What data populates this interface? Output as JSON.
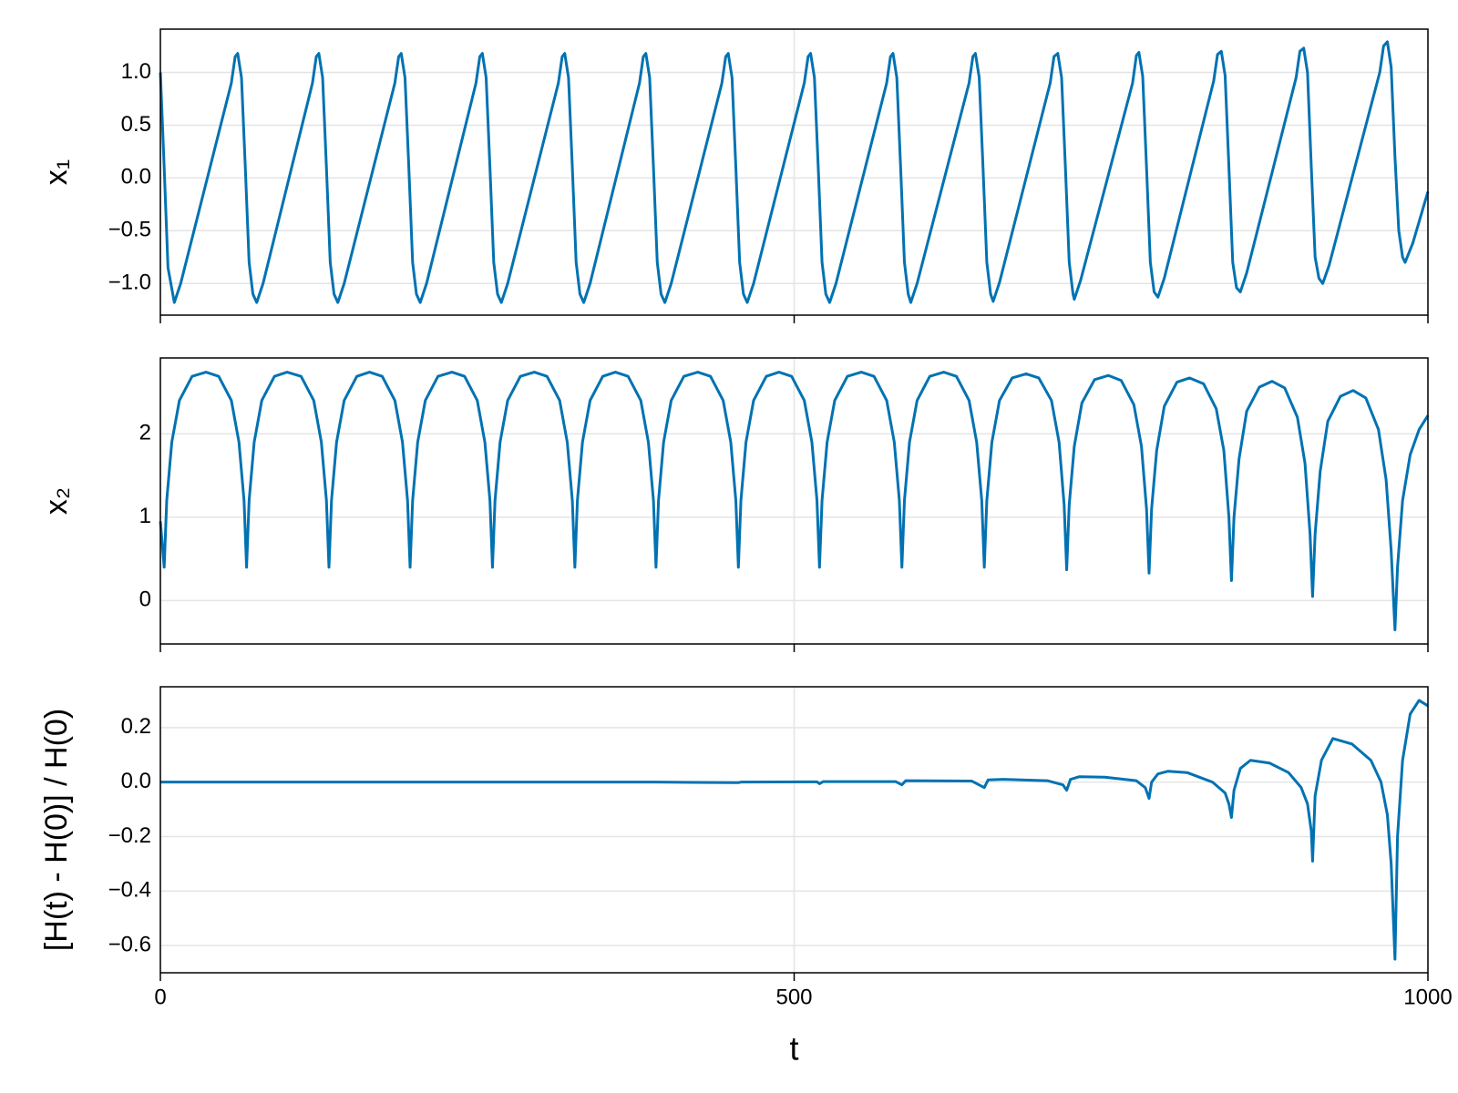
{
  "chart_data": [
    {
      "type": "line",
      "ylabel": "x₁",
      "color": "#0072b2",
      "grid": true,
      "x_tick_labels": false,
      "xlim": [
        0,
        1000
      ],
      "xticks": [
        0,
        500,
        1000
      ],
      "ylim": [
        -1.3,
        1.41
      ],
      "yticks": [
        {
          "value": -1,
          "label": "−1.0"
        },
        {
          "value": -0.5,
          "label": "−0.5"
        },
        {
          "value": 0,
          "label": "0.0"
        },
        0.5,
        {
          "value": 1,
          "label": "1.0"
        }
      ],
      "x": [
        0,
        3,
        6,
        11,
        16,
        56,
        59,
        61,
        64,
        67,
        70,
        73,
        76,
        81,
        120,
        123,
        125,
        128,
        131,
        134,
        137,
        140,
        145,
        185,
        188,
        190,
        193,
        196,
        199,
        202,
        205,
        210,
        249,
        252,
        254,
        257,
        260,
        263,
        266,
        269,
        274,
        314,
        317,
        319,
        322,
        325,
        328,
        331,
        334,
        339,
        378,
        381,
        383,
        386,
        389,
        392,
        395,
        398,
        403,
        443,
        446,
        448,
        451,
        454,
        457,
        460,
        463,
        468,
        508,
        511,
        513,
        516,
        519,
        522,
        525,
        528,
        533,
        573,
        576,
        578,
        581,
        584,
        587,
        590,
        592,
        597,
        638,
        641,
        643,
        646,
        649,
        652,
        655,
        657,
        662,
        702,
        705,
        708,
        711,
        714,
        717,
        720,
        721,
        726,
        767,
        770,
        772,
        775,
        778,
        781,
        784,
        787,
        792,
        831,
        834,
        837,
        840,
        843,
        846,
        849,
        852,
        857,
        896,
        899,
        902,
        905,
        908,
        911,
        914,
        917,
        922,
        962,
        965,
        968,
        971,
        974,
        977,
        980,
        982,
        988,
        1000
      ],
      "values": [
        1.0,
        0.1,
        -0.85,
        -1.18,
        -1.0,
        0.9,
        1.15,
        1.18,
        0.95,
        0.1,
        -0.8,
        -1.1,
        -1.18,
        -1.0,
        0.9,
        1.15,
        1.18,
        0.95,
        0.1,
        -0.8,
        -1.1,
        -1.18,
        -1.0,
        0.9,
        1.15,
        1.18,
        0.95,
        0.1,
        -0.8,
        -1.1,
        -1.18,
        -1.0,
        0.9,
        1.15,
        1.18,
        0.95,
        0.1,
        -0.8,
        -1.1,
        -1.18,
        -1.0,
        0.9,
        1.15,
        1.18,
        0.95,
        0.1,
        -0.8,
        -1.1,
        -1.18,
        -1.0,
        0.9,
        1.15,
        1.18,
        0.95,
        0.1,
        -0.8,
        -1.1,
        -1.18,
        -1.0,
        0.9,
        1.15,
        1.18,
        0.95,
        0.1,
        -0.8,
        -1.1,
        -1.18,
        -1.0,
        0.9,
        1.15,
        1.18,
        0.95,
        0.1,
        -0.8,
        -1.1,
        -1.18,
        -1.0,
        0.9,
        1.15,
        1.18,
        0.95,
        0.1,
        -0.8,
        -1.1,
        -1.18,
        -1.0,
        0.9,
        1.15,
        1.18,
        0.95,
        0.1,
        -0.8,
        -1.1,
        -1.17,
        -0.99,
        0.9,
        1.15,
        1.18,
        0.95,
        0.1,
        -0.8,
        -1.1,
        -1.15,
        -0.97,
        0.9,
        1.16,
        1.19,
        0.96,
        0.1,
        -0.8,
        -1.08,
        -1.13,
        -0.95,
        0.92,
        1.17,
        1.2,
        0.97,
        0.1,
        -0.8,
        -1.04,
        -1.08,
        -0.9,
        0.95,
        1.2,
        1.23,
        1.0,
        0.1,
        -0.75,
        -0.95,
        -1.0,
        -0.83,
        1.0,
        1.25,
        1.29,
        1.05,
        0.2,
        -0.5,
        -0.75,
        -0.8,
        -0.62,
        -0.13
      ]
    },
    {
      "type": "line",
      "ylabel": "x₂",
      "color": "#0072b2",
      "grid": true,
      "x_tick_labels": false,
      "xlim": [
        0,
        1000
      ],
      "xticks": [
        0,
        500,
        1000
      ],
      "ylim": [
        -0.52,
        2.91
      ],
      "yticks": [
        0,
        1,
        2
      ],
      "x": [
        0,
        3,
        5,
        9,
        15,
        25,
        36,
        46,
        56,
        62,
        66,
        68,
        70,
        74,
        80,
        90,
        100,
        111,
        121,
        127,
        131,
        133,
        135,
        139,
        145,
        155,
        165,
        175,
        185,
        191,
        195,
        197,
        199,
        203,
        209,
        219,
        230,
        240,
        250,
        256,
        260,
        262,
        264,
        268,
        274,
        284,
        295,
        305,
        315,
        321,
        325,
        327,
        329,
        333,
        339,
        349,
        359,
        369,
        379,
        385,
        389,
        391,
        393,
        397,
        403,
        413,
        424,
        434,
        444,
        450,
        454,
        456,
        458,
        462,
        468,
        478,
        488,
        498,
        508,
        514,
        518,
        520,
        522,
        526,
        532,
        542,
        553,
        563,
        573,
        579,
        583,
        585,
        587,
        591,
        597,
        607,
        618,
        628,
        638,
        644,
        648,
        650,
        652,
        656,
        662,
        672,
        683,
        693,
        703,
        709,
        713,
        715,
        717,
        721,
        727,
        737,
        748,
        758,
        768,
        774,
        778,
        780,
        782,
        786,
        792,
        802,
        812,
        823,
        833,
        839,
        843,
        845,
        847,
        851,
        857,
        867,
        877,
        887,
        897,
        903,
        907,
        909,
        911,
        915,
        921,
        931,
        941,
        951,
        961,
        967,
        971,
        974,
        976,
        980,
        986,
        993,
        1000
      ],
      "values": [
        0.95,
        0.4,
        1.2,
        1.9,
        2.4,
        2.69,
        2.74,
        2.69,
        2.4,
        1.9,
        1.2,
        0.4,
        1.2,
        1.9,
        2.4,
        2.69,
        2.74,
        2.69,
        2.4,
        1.9,
        1.2,
        0.4,
        1.2,
        1.9,
        2.4,
        2.69,
        2.74,
        2.69,
        2.4,
        1.9,
        1.2,
        0.4,
        1.2,
        1.9,
        2.4,
        2.69,
        2.74,
        2.69,
        2.4,
        1.9,
        1.2,
        0.4,
        1.2,
        1.9,
        2.4,
        2.69,
        2.74,
        2.69,
        2.4,
        1.9,
        1.2,
        0.4,
        1.2,
        1.9,
        2.4,
        2.69,
        2.74,
        2.69,
        2.4,
        1.9,
        1.2,
        0.4,
        1.2,
        1.9,
        2.4,
        2.69,
        2.74,
        2.69,
        2.4,
        1.9,
        1.2,
        0.4,
        1.2,
        1.9,
        2.4,
        2.69,
        2.74,
        2.69,
        2.4,
        1.9,
        1.2,
        0.4,
        1.2,
        1.9,
        2.4,
        2.69,
        2.74,
        2.69,
        2.4,
        1.9,
        1.2,
        0.4,
        1.2,
        1.9,
        2.4,
        2.69,
        2.74,
        2.69,
        2.4,
        1.9,
        1.2,
        0.4,
        1.2,
        1.9,
        2.4,
        2.67,
        2.72,
        2.67,
        2.4,
        1.9,
        1.15,
        0.37,
        1.15,
        1.85,
        2.37,
        2.65,
        2.7,
        2.64,
        2.35,
        1.85,
        1.1,
        0.33,
        1.1,
        1.8,
        2.33,
        2.62,
        2.67,
        2.6,
        2.3,
        1.8,
        1.0,
        0.24,
        1.0,
        1.7,
        2.27,
        2.56,
        2.63,
        2.55,
        2.2,
        1.65,
        0.8,
        0.05,
        0.8,
        1.55,
        2.15,
        2.45,
        2.52,
        2.43,
        2.05,
        1.45,
        0.6,
        -0.35,
        0.4,
        1.2,
        1.75,
        2.05,
        2.22
      ]
    },
    {
      "type": "line",
      "ylabel": "[H(t) - H(0)] / H(0)",
      "xlabel": "t",
      "color": "#0072b2",
      "grid": true,
      "x_tick_labels": true,
      "xlim": [
        0,
        1000
      ],
      "xticks": [
        0,
        500,
        1000
      ],
      "ylim": [
        -0.7,
        0.35
      ],
      "yticks": [
        {
          "value": -0.6,
          "label": "−0.6"
        },
        {
          "value": -0.4,
          "label": "−0.4"
        },
        {
          "value": -0.2,
          "label": "−0.2"
        },
        {
          "value": 0,
          "label": "0.0"
        },
        0.2
      ],
      "x": [
        0,
        390,
        456,
        458,
        518,
        520,
        523,
        580,
        585,
        588,
        640,
        650,
        653,
        665,
        700,
        712,
        715,
        718,
        725,
        745,
        770,
        777,
        780,
        782,
        787,
        795,
        810,
        830,
        840,
        843,
        845,
        847,
        852,
        860,
        875,
        890,
        900,
        905,
        908,
        909,
        911,
        916,
        925,
        940,
        955,
        963,
        968,
        971,
        974,
        976,
        980,
        986,
        993,
        1000
      ],
      "values": [
        0,
        0,
        -0.002,
        0,
        0.001,
        -0.006,
        0.002,
        0.002,
        -0.01,
        0.005,
        0.004,
        -0.02,
        0.008,
        0.01,
        0.005,
        -0.01,
        -0.03,
        0.01,
        0.02,
        0.018,
        0.005,
        -0.02,
        -0.06,
        0.0,
        0.03,
        0.04,
        0.035,
        0.0,
        -0.04,
        -0.08,
        -0.13,
        -0.03,
        0.05,
        0.08,
        0.07,
        0.035,
        -0.02,
        -0.08,
        -0.18,
        -0.29,
        -0.05,
        0.08,
        0.16,
        0.14,
        0.08,
        0.0,
        -0.12,
        -0.3,
        -0.65,
        -0.2,
        0.08,
        0.25,
        0.3,
        0.28
      ]
    }
  ]
}
